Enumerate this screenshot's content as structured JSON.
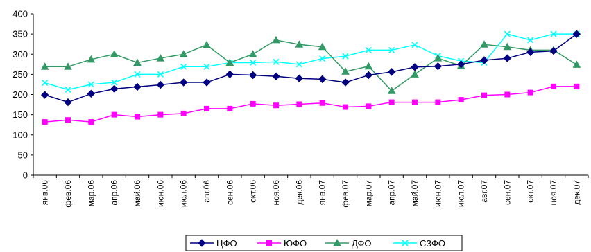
{
  "chart_data": {
    "type": "line",
    "title": "",
    "xlabel": "",
    "ylabel": "",
    "ylim": [
      0,
      400
    ],
    "yticks": [
      0,
      50,
      100,
      150,
      200,
      250,
      300,
      350,
      400
    ],
    "grid": false,
    "legend": "bottom",
    "categories": [
      "янв.06",
      "фев.06",
      "мар.06",
      "апр.06",
      "май.06",
      "июн.06",
      "июл.06",
      "авг.06",
      "сен.06",
      "окт.06",
      "ноя.06",
      "дек.06",
      "янв.07",
      "фев.07",
      "мар.07",
      "апр.07",
      "май.07",
      "июн.07",
      "июл.07",
      "авг.07",
      "сен.07",
      "окт.07",
      "ноя.07",
      "дек.07"
    ],
    "series": [
      {
        "name": "ЦФО",
        "color": "#000080",
        "marker": "diamond",
        "values": [
          199,
          181,
          202,
          214,
          219,
          224,
          230,
          230,
          250,
          248,
          245,
          240,
          238,
          230,
          248,
          256,
          268,
          270,
          275,
          285,
          290,
          305,
          308,
          350
        ]
      },
      {
        "name": "ЮФО",
        "color": "#ff00ff",
        "marker": "square",
        "values": [
          132,
          137,
          132,
          150,
          145,
          150,
          153,
          165,
          165,
          177,
          173,
          176,
          179,
          169,
          171,
          181,
          181,
          181,
          187,
          198,
          200,
          205,
          220,
          220
        ]
      },
      {
        "name": "ДФО",
        "color": "#339966",
        "marker": "triangle",
        "values": [
          269,
          269,
          287,
          300,
          279,
          290,
          300,
          323,
          279,
          300,
          335,
          324,
          318,
          257,
          270,
          209,
          250,
          290,
          271,
          324,
          318,
          310,
          310,
          274
        ]
      },
      {
        "name": "СЗФО",
        "color": "#00ffff",
        "marker": "x",
        "values": [
          229,
          212,
          225,
          230,
          250,
          250,
          269,
          269,
          279,
          279,
          281,
          275,
          289,
          295,
          310,
          310,
          323,
          296,
          283,
          279,
          350,
          335,
          350,
          350
        ]
      }
    ]
  }
}
